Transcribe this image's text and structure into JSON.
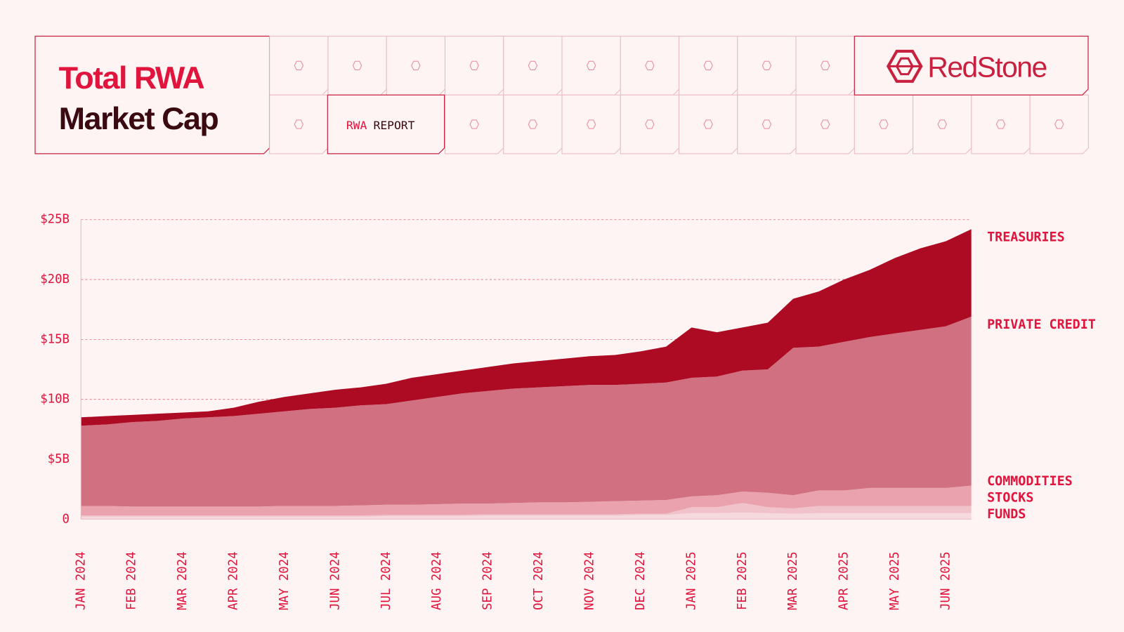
{
  "header": {
    "title_line1": "Total RWA",
    "title_line2": "Market Cap",
    "report_tag": "RWA",
    "report_label": "REPORT",
    "logo": "RedStone"
  },
  "chart_data": {
    "type": "stacked_area",
    "categories": [
      "JAN 2024",
      null,
      "FEB 2024",
      null,
      "MAR 2024",
      null,
      "APR 2024",
      null,
      "MAY 2024",
      null,
      "JUN 2024",
      null,
      "JUL 2024",
      null,
      "AUG 2024",
      null,
      "SEP 2024",
      null,
      "OCT 2024",
      null,
      "NOV 2024",
      null,
      "DEC 2024",
      null,
      "JAN 2025",
      null,
      "FEB 2025",
      null,
      "MAR 2025",
      null,
      "APR 2025",
      null,
      "MAY 2025",
      null,
      "JUN 2025",
      null
    ],
    "series": [
      {
        "name": "FUNDS",
        "color": "#f6d9dd",
        "values": [
          0.2,
          0.2,
          0.2,
          0.2,
          0.2,
          0.2,
          0.2,
          0.2,
          0.2,
          0.2,
          0.2,
          0.2,
          0.25,
          0.25,
          0.25,
          0.25,
          0.3,
          0.3,
          0.3,
          0.3,
          0.3,
          0.3,
          0.35,
          0.35,
          0.5,
          0.5,
          0.55,
          0.5,
          0.45,
          0.5,
          0.5,
          0.5,
          0.5,
          0.5,
          0.5,
          0.5
        ]
      },
      {
        "name": "STOCKS",
        "color": "#f0c3ca",
        "values": [
          0.1,
          0.1,
          0.1,
          0.1,
          0.1,
          0.1,
          0.1,
          0.1,
          0.1,
          0.1,
          0.1,
          0.1,
          0.1,
          0.1,
          0.1,
          0.1,
          0.1,
          0.1,
          0.1,
          0.1,
          0.1,
          0.1,
          0.1,
          0.1,
          0.5,
          0.5,
          0.8,
          0.5,
          0.45,
          0.6,
          0.6,
          0.6,
          0.6,
          0.6,
          0.6,
          0.6
        ]
      },
      {
        "name": "COMMODITIES",
        "color": "#eaa3ae",
        "values": [
          0.8,
          0.8,
          0.75,
          0.75,
          0.75,
          0.75,
          0.75,
          0.75,
          0.8,
          0.8,
          0.8,
          0.85,
          0.85,
          0.85,
          0.9,
          0.95,
          0.9,
          0.95,
          1.0,
          1.0,
          1.05,
          1.1,
          1.1,
          1.15,
          0.9,
          1.0,
          0.95,
          1.2,
          1.1,
          1.3,
          1.3,
          1.5,
          1.5,
          1.5,
          1.5,
          1.7
        ]
      },
      {
        "name": "PRIVATE CREDIT",
        "color": "#d07080",
        "values": [
          6.7,
          6.8,
          7.05,
          7.15,
          7.35,
          7.45,
          7.55,
          7.75,
          7.9,
          8.1,
          8.2,
          8.35,
          8.4,
          8.7,
          8.95,
          9.2,
          9.4,
          9.55,
          9.6,
          9.7,
          9.75,
          9.7,
          9.75,
          9.8,
          9.9,
          9.9,
          10.1,
          10.3,
          12.3,
          12.0,
          12.4,
          12.6,
          12.9,
          13.2,
          13.5,
          14.1
        ]
      },
      {
        "name": "TREASURIES",
        "color": "#ad0a23",
        "values": [
          0.7,
          0.7,
          0.6,
          0.6,
          0.5,
          0.5,
          0.7,
          1.0,
          1.2,
          1.3,
          1.5,
          1.5,
          1.7,
          1.9,
          1.9,
          1.9,
          2.0,
          2.1,
          2.2,
          2.3,
          2.4,
          2.5,
          2.7,
          3.0,
          4.2,
          3.7,
          3.6,
          3.9,
          4.1,
          4.6,
          5.2,
          5.6,
          6.3,
          6.8,
          7.1,
          7.3
        ]
      }
    ],
    "ylim": [
      0,
      25
    ],
    "yticks": [
      0,
      {
        "value": 5,
        "label": "$5B"
      },
      {
        "value": 10,
        "label": "$10B"
      },
      {
        "value": 15,
        "label": "$15B"
      },
      {
        "value": 20,
        "label": "$20B"
      },
      {
        "value": 25,
        "label": "$25B"
      }
    ],
    "grid": true
  }
}
